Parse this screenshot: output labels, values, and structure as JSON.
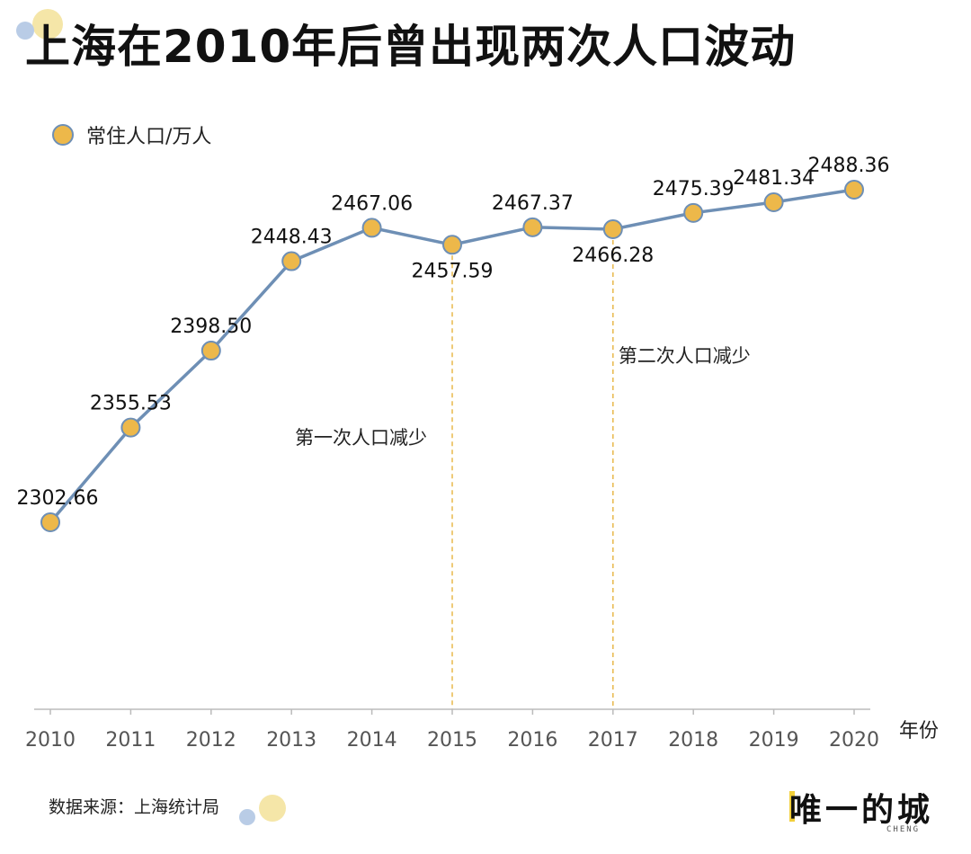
{
  "title": "上海在2010年后曾出现两次人口波动",
  "source": "数据来源：上海统计局",
  "brand": {
    "name": "唯一的城",
    "sub": "CHENG"
  },
  "colors": {
    "point_fill": "#EDB84A",
    "point_stroke": "#6E8FB5",
    "line": "#6E8FB5",
    "annotation_line": "#E8B84A",
    "axis": "#BBBBBB",
    "deco_yellow": "#F5E6A8",
    "deco_blue": "#B9CCE6"
  },
  "chart_data": {
    "type": "line",
    "x": [
      2010,
      2011,
      2012,
      2013,
      2014,
      2015,
      2016,
      2017,
      2018,
      2019,
      2020
    ],
    "x_labels": [
      "2010",
      "2011",
      "2012",
      "2013",
      "2014",
      "2015",
      "2016",
      "2017",
      "2018",
      "2019",
      "2020"
    ],
    "series": [
      {
        "name": "常住人口/万人",
        "values": [
          2302.66,
          2355.53,
          2398.5,
          2448.43,
          2467.06,
          2457.59,
          2467.37,
          2466.28,
          2475.39,
          2481.34,
          2488.36
        ],
        "labels": [
          "2302.66",
          "2355.53",
          "2398.50",
          "2448.43",
          "2467.06",
          "2457.59",
          "2467.37",
          "2466.28",
          "2475.39",
          "2481.34",
          "2488.36"
        ]
      }
    ],
    "xlabel": "年份",
    "ylabel": "",
    "legend": "top-left",
    "grid": false,
    "annotations": [
      {
        "x": 2015,
        "text": "第一次人口减少"
      },
      {
        "x": 2017,
        "text": "第二次人口减少"
      }
    ]
  }
}
